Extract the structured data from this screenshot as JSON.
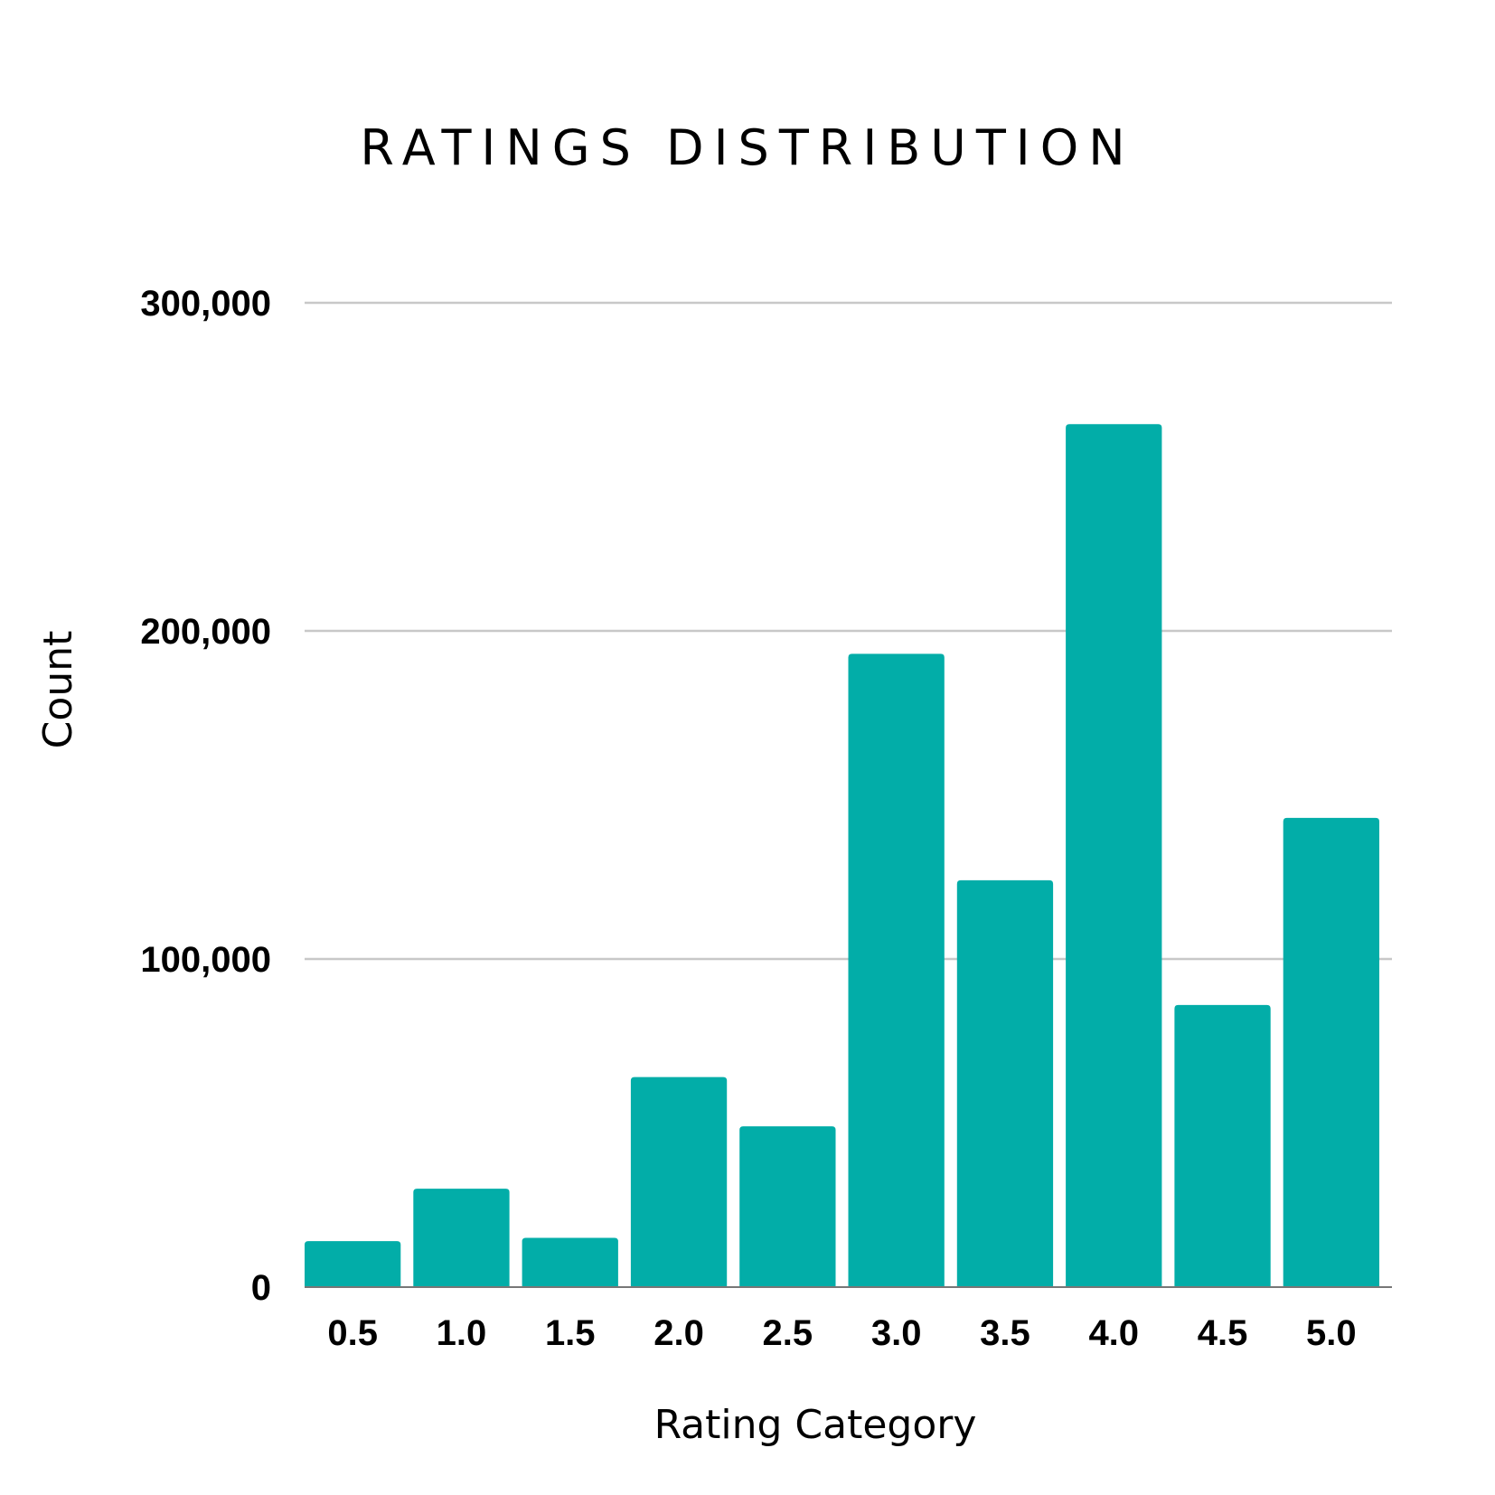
{
  "chart_data": {
    "type": "bar",
    "title": "RATINGS DISTRIBUTION",
    "xlabel": "Rating Category",
    "ylabel": "Count",
    "categories": [
      "0.5",
      "1.0",
      "1.5",
      "2.0",
      "2.5",
      "3.0",
      "3.5",
      "4.0",
      "4.5",
      "5.0"
    ],
    "values": [
      14000,
      30000,
      15000,
      64000,
      49000,
      193000,
      124000,
      263000,
      86000,
      143000
    ],
    "ylim": [
      0,
      300000
    ],
    "yticks": [
      0,
      100000,
      200000,
      300000
    ],
    "ytick_labels": [
      "0",
      "100,000",
      "200,000",
      "300,000"
    ],
    "grid": true,
    "legend": "none",
    "colors": {
      "bar": "#02ada8",
      "grid": "#c8c8c8",
      "baseline": "#777777",
      "text": "#000000"
    }
  }
}
